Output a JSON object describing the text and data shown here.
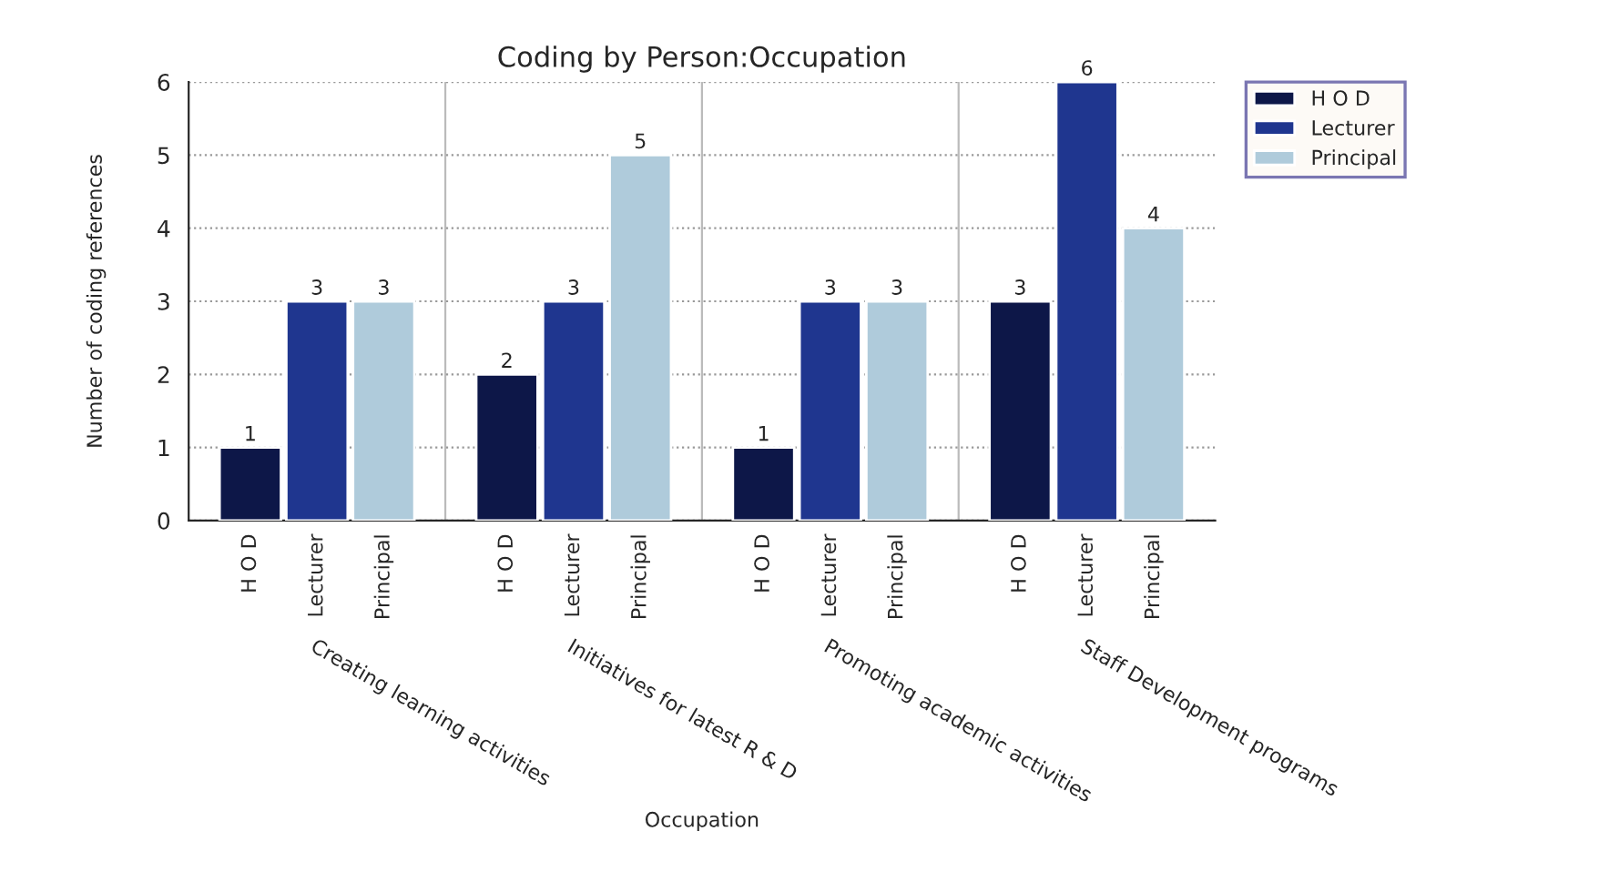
{
  "chart_data": {
    "type": "bar",
    "title": "Coding by Person:Occupation",
    "xlabel": "Occupation",
    "ylabel": "Number of coding references",
    "categories": [
      "Creating learning activities",
      "Initiatives for latest R & D",
      "Promoting academic activities",
      "Staff Development programs"
    ],
    "series": [
      {
        "name": "H O D",
        "color": "#0d1748",
        "values": [
          1,
          2,
          1,
          3
        ]
      },
      {
        "name": "Lecturer",
        "color": "#1f368f",
        "values": [
          3,
          3,
          3,
          6
        ]
      },
      {
        "name": "Principal",
        "color": "#afcbdb",
        "values": [
          3,
          5,
          3,
          4
        ]
      }
    ],
    "ylim": [
      0,
      6
    ],
    "yticks": [
      0,
      1,
      2,
      3,
      4,
      5,
      6
    ],
    "grid": true,
    "legend": "right",
    "data_labels": true
  }
}
